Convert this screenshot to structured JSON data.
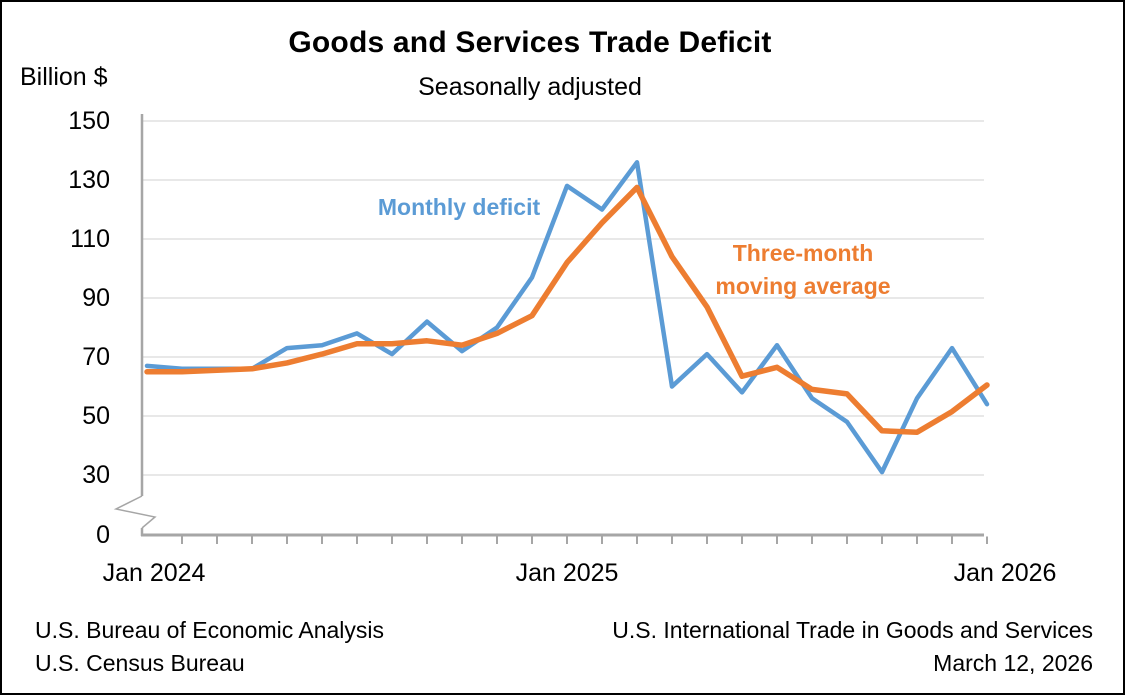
{
  "chart_data": {
    "type": "line",
    "title": "Goods and Services Trade Deficit",
    "subtitle": "Seasonally adjusted",
    "y_axis_label": "Billion $",
    "ylabel": "Billion $",
    "y_ticks": [
      0,
      30,
      50,
      70,
      90,
      110,
      130,
      150
    ],
    "y_axis_break_between": [
      0,
      30
    ],
    "ylim": [
      30,
      150
    ],
    "grid": "horizontal",
    "legend_position": "inline-annotations",
    "x_tick_labels": [
      "Jan 2024",
      "Jan 2025",
      "Jan 2026"
    ],
    "categories": [
      "Jan 2024",
      "Feb 2024",
      "Mar 2024",
      "Apr 2024",
      "May 2024",
      "Jun 2024",
      "Jul 2024",
      "Aug 2024",
      "Sep 2024",
      "Oct 2024",
      "Nov 2024",
      "Dec 2024",
      "Jan 2025",
      "Feb 2025",
      "Mar 2025",
      "Apr 2025",
      "May 2025",
      "Jun 2025",
      "Jul 2025",
      "Aug 2025",
      "Sep 2025",
      "Oct 2025",
      "Nov 2025",
      "Dec 2025",
      "Jan 2026"
    ],
    "series": [
      {
        "name": "Monthly deficit",
        "color": "#5B9BD5",
        "values": [
          67,
          66,
          66,
          66,
          73,
          74,
          78,
          71,
          82,
          72,
          80,
          97,
          128,
          120,
          136,
          60,
          71,
          58,
          74,
          56,
          48,
          31,
          56,
          73,
          54
        ]
      },
      {
        "name": "Three-month moving average",
        "color": "#ED7D31",
        "values": [
          65,
          65,
          65.5,
          66,
          68,
          71,
          74.5,
          74.5,
          75.5,
          74,
          78,
          84,
          102,
          115.5,
          127.5,
          104,
          87,
          63.5,
          66.5,
          59,
          57.5,
          45,
          44.5,
          51.5,
          60.5
        ]
      }
    ],
    "annotations": {
      "monthly_label": "Monthly deficit",
      "avg_label_lines": [
        "Three-month",
        "moving average"
      ]
    },
    "sources": {
      "left": [
        "U.S. Bureau of Economic Analysis",
        "U.S. Census Bureau"
      ],
      "right": [
        "U.S. International Trade in Goods and Services",
        "March 12, 2026"
      ]
    },
    "colors": {
      "monthly_line": "#5B9BD5",
      "moving_average_line": "#ED7D31",
      "axis": "#A6A6A6",
      "gridline": "#D9D9D9",
      "text": "#000000"
    }
  }
}
